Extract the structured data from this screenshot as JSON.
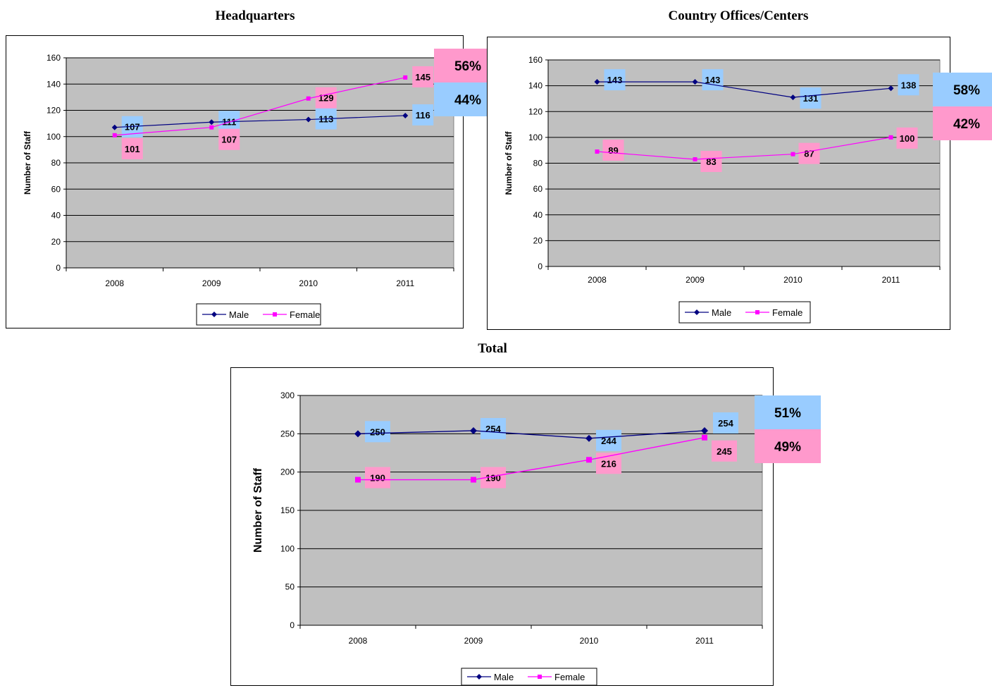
{
  "colors": {
    "male": "#000080",
    "female": "#FF00FF",
    "plot_bg": "#C0C0C0",
    "male_label_bg": "#99CCFF",
    "female_label_bg": "#FF99CC"
  },
  "chart_data": [
    {
      "id": "hq",
      "type": "line",
      "title": "Headquarters",
      "ylabel": "Number of Staff",
      "xlabel": "",
      "ylim": [
        0,
        160
      ],
      "ytick_step": 20,
      "categories": [
        "2008",
        "2009",
        "2010",
        "2011"
      ],
      "series": [
        {
          "name": "Male",
          "key": "male",
          "values": [
            107,
            111,
            113,
            116
          ]
        },
        {
          "name": "Female",
          "key": "female",
          "values": [
            101,
            107,
            129,
            145
          ]
        }
      ],
      "share": {
        "male": "44%",
        "female": "56%",
        "top": "female"
      },
      "legend": "bottom",
      "grid": true
    },
    {
      "id": "co",
      "type": "line",
      "title": "Country Offices/Centers",
      "ylabel": "Number of Staff",
      "xlabel": "",
      "ylim": [
        0,
        160
      ],
      "ytick_step": 20,
      "categories": [
        "2008",
        "2009",
        "2010",
        "2011"
      ],
      "series": [
        {
          "name": "Male",
          "key": "male",
          "values": [
            143,
            143,
            131,
            138
          ]
        },
        {
          "name": "Female",
          "key": "female",
          "values": [
            89,
            83,
            87,
            100
          ]
        }
      ],
      "share": {
        "male": "58%",
        "female": "42%",
        "top": "male"
      },
      "legend": "bottom",
      "grid": true
    },
    {
      "id": "total",
      "type": "line",
      "title": "Total",
      "ylabel": "Number of Staff",
      "xlabel": "",
      "ylim": [
        0,
        300
      ],
      "ytick_step": 50,
      "categories": [
        "2008",
        "2009",
        "2010",
        "2011"
      ],
      "series": [
        {
          "name": "Male",
          "key": "male",
          "values": [
            250,
            254,
            244,
            254
          ]
        },
        {
          "name": "Female",
          "key": "female",
          "values": [
            190,
            190,
            216,
            245
          ]
        }
      ],
      "share": {
        "male": "51%",
        "female": "49%",
        "top": "male"
      },
      "legend": "bottom",
      "grid": true
    }
  ]
}
